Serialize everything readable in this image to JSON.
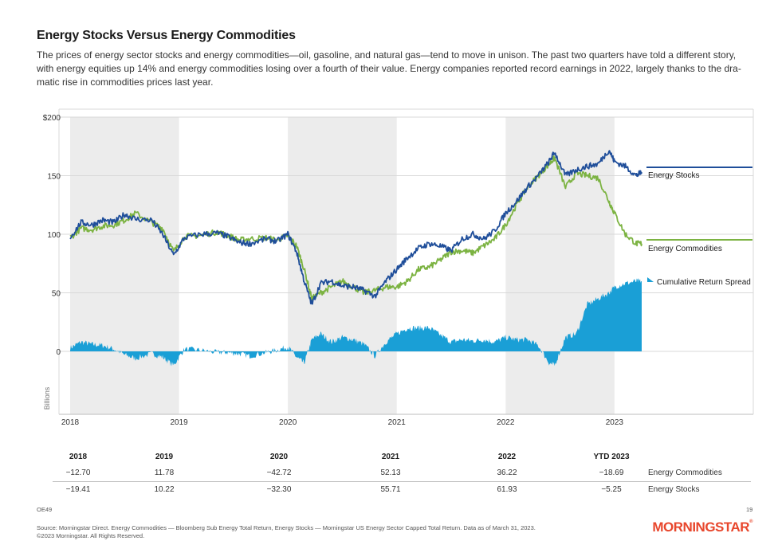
{
  "header": {
    "title": "Energy Stocks Versus Energy Commodities",
    "subtitle": "The prices of energy sector stocks and energy commodities—oil, gasoline, and natural gas—tend to move in unison. The past two quarters have told a different story, with energy equities up 14% and energy commodities losing over a fourth of their value. Energy companies reported record earnings in 2022, largely thanks to the dra-matic rise in commodities prices last year."
  },
  "colors": {
    "energy_stocks": "#1f4e9a",
    "energy_commodities": "#7cb342",
    "spread": "#1a9fd6",
    "shade": "#ececec",
    "brand": "#e8472d"
  },
  "chart_data": {
    "type": "line",
    "ylabel": "Billions",
    "ylim": [
      -50,
      200
    ],
    "y_ticks": [
      "$200",
      "150",
      "100",
      "50",
      "0"
    ],
    "y_tick_values": [
      200,
      150,
      100,
      50,
      0
    ],
    "x_ticks": [
      "2018",
      "2019",
      "2020",
      "2021",
      "2022",
      "2023"
    ],
    "x_tick_values": [
      2018.0,
      2019.0,
      2020.0,
      2021.0,
      2022.0,
      2023.0
    ],
    "xlim": [
      2018.0,
      2023.25
    ],
    "shaded_years": [
      [
        2018.0,
        2019.0
      ],
      [
        2020.0,
        2021.0
      ],
      [
        2022.0,
        2023.0
      ]
    ],
    "legend_position": "right",
    "series": [
      {
        "name": "Energy Stocks",
        "type": "line",
        "x": [
          2018.0,
          2018.1,
          2018.2,
          2018.3,
          2018.4,
          2018.5,
          2018.6,
          2018.75,
          2018.85,
          2018.95,
          2019.05,
          2019.2,
          2019.35,
          2019.45,
          2019.55,
          2019.65,
          2019.8,
          2019.9,
          2020.0,
          2020.08,
          2020.15,
          2020.22,
          2020.3,
          2020.4,
          2020.5,
          2020.6,
          2020.7,
          2020.8,
          2020.9,
          2021.0,
          2021.1,
          2021.2,
          2021.3,
          2021.4,
          2021.5,
          2021.6,
          2021.7,
          2021.8,
          2021.9,
          2022.0,
          2022.1,
          2022.2,
          2022.3,
          2022.4,
          2022.45,
          2022.55,
          2022.65,
          2022.75,
          2022.85,
          2022.95,
          2023.0,
          2023.1,
          2023.2,
          2023.25
        ],
        "y": [
          97,
          110,
          108,
          112,
          110,
          117,
          113,
          112,
          100,
          82,
          97,
          100,
          101,
          98,
          93,
          92,
          96,
          94,
          100,
          85,
          60,
          40,
          58,
          60,
          56,
          55,
          52,
          47,
          60,
          70,
          80,
          88,
          92,
          90,
          86,
          96,
          100,
          96,
          103,
          118,
          128,
          140,
          150,
          162,
          170,
          150,
          155,
          158,
          160,
          172,
          162,
          158,
          150,
          153
        ]
      },
      {
        "name": "Energy Commodities",
        "type": "line",
        "x": [
          2018.0,
          2018.1,
          2018.2,
          2018.3,
          2018.4,
          2018.5,
          2018.6,
          2018.75,
          2018.85,
          2018.95,
          2019.05,
          2019.2,
          2019.35,
          2019.45,
          2019.55,
          2019.65,
          2019.8,
          2019.9,
          2020.0,
          2020.08,
          2020.15,
          2020.22,
          2020.3,
          2020.4,
          2020.5,
          2020.6,
          2020.7,
          2020.8,
          2020.9,
          2021.0,
          2021.1,
          2021.2,
          2021.3,
          2021.4,
          2021.5,
          2021.6,
          2021.7,
          2021.8,
          2021.9,
          2022.0,
          2022.1,
          2022.2,
          2022.3,
          2022.4,
          2022.45,
          2022.55,
          2022.65,
          2022.75,
          2022.85,
          2022.95,
          2023.0,
          2023.1,
          2023.2,
          2023.25
        ],
        "y": [
          97,
          105,
          104,
          107,
          108,
          112,
          118,
          110,
          105,
          85,
          98,
          99,
          102,
          99,
          95,
          96,
          97,
          95,
          99,
          90,
          70,
          45,
          50,
          55,
          60,
          55,
          50,
          52,
          55,
          55,
          60,
          70,
          72,
          78,
          85,
          86,
          84,
          90,
          96,
          108,
          125,
          140,
          150,
          160,
          165,
          140,
          152,
          150,
          148,
          128,
          118,
          100,
          92,
          92
        ]
      },
      {
        "name": "Cumulative Return Spread",
        "type": "area",
        "x": [
          2018.0,
          2018.1,
          2018.2,
          2018.3,
          2018.4,
          2018.5,
          2018.6,
          2018.75,
          2018.85,
          2018.95,
          2019.05,
          2019.2,
          2019.35,
          2019.45,
          2019.55,
          2019.65,
          2019.8,
          2019.9,
          2020.0,
          2020.08,
          2020.15,
          2020.22,
          2020.3,
          2020.4,
          2020.5,
          2020.6,
          2020.7,
          2020.8,
          2020.9,
          2021.0,
          2021.1,
          2021.2,
          2021.3,
          2021.4,
          2021.5,
          2021.6,
          2021.7,
          2021.8,
          2021.9,
          2022.0,
          2022.1,
          2022.2,
          2022.3,
          2022.4,
          2022.45,
          2022.55,
          2022.65,
          2022.75,
          2022.85,
          2022.95,
          2023.0,
          2023.1,
          2023.2,
          2023.25
        ],
        "y": [
          3,
          8,
          6,
          5,
          2,
          -3,
          -6,
          -2,
          -5,
          -12,
          2,
          1,
          -1,
          -1,
          -2,
          -4,
          -1,
          1,
          4,
          -5,
          -10,
          10,
          15,
          8,
          12,
          10,
          6,
          -4,
          8,
          15,
          20,
          20,
          20,
          14,
          8,
          10,
          9,
          10,
          8,
          12,
          10,
          10,
          5,
          -10,
          -12,
          12,
          15,
          40,
          45,
          50,
          55,
          58,
          60,
          60
        ]
      }
    ]
  },
  "legend": {
    "energy_stocks": "Energy Stocks",
    "energy_commodities": "Energy Commodities",
    "spread": "Cumulative Return Spread"
  },
  "table": {
    "headers": [
      "2018",
      "2019",
      "2020",
      "2021",
      "2022",
      "YTD 2023"
    ],
    "rows": [
      {
        "label": "Energy Commodities",
        "values": [
          "−12.70",
          "11.78",
          "−42.72",
          "52.13",
          "36.22",
          "−18.69"
        ]
      },
      {
        "label": "Energy Stocks",
        "values": [
          "−19.41",
          "10.22",
          "−32.30",
          "55.71",
          "61.93",
          "−5.25"
        ]
      }
    ]
  },
  "footer": {
    "code": "OE49",
    "page_number": "19",
    "source": "Source: Morningstar Direct. Energy Commodities — Bloomberg Sub Energy Total Return, Energy Stocks — Morningstar US Energy Sector Capped Total Return. Data as of March 31, 2023.",
    "copyright": "©2023 Morningstar. All Rights Reserved.",
    "logo": "MORNINGSTAR"
  }
}
